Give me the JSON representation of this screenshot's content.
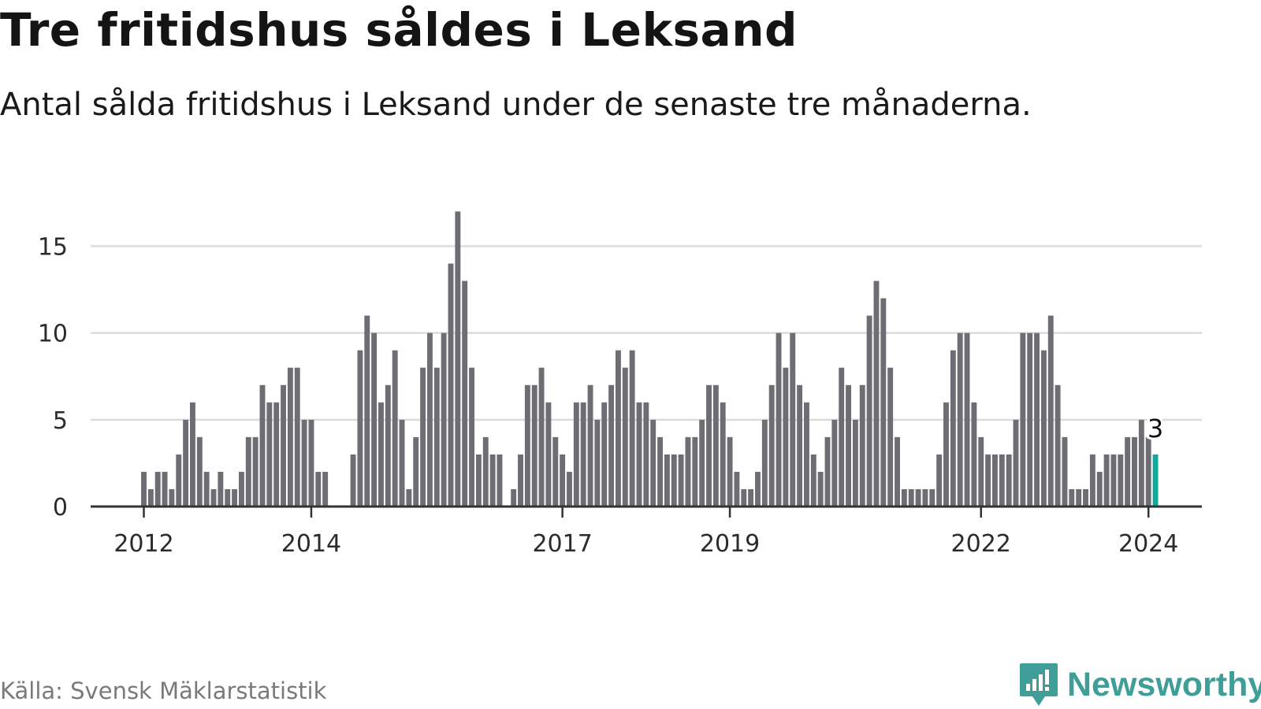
{
  "title": "Tre fritidshus såldes i Leksand",
  "subtitle": "Antal sålda fritidshus i Leksand under de senaste tre månaderna.",
  "source": "Källa: Svensk Mäklarstatistik",
  "brand": "Newsworthy",
  "colors": {
    "bar": "#6e6d73",
    "highlight": "#13a89e",
    "grid": "#dcdcdc",
    "axis": "#333333",
    "brand": "#3f9f98"
  },
  "chart_data": {
    "type": "bar",
    "title": "Tre fritidshus såldes i Leksand",
    "xlabel": "",
    "ylabel": "",
    "ylim": [
      0,
      17
    ],
    "yticks": [
      0,
      5,
      10,
      15
    ],
    "xticks": [
      "2012",
      "2014",
      "2017",
      "2019",
      "2022",
      "2024"
    ],
    "start": "2012-01",
    "unit": "month",
    "values": [
      2,
      1,
      2,
      2,
      1,
      3,
      5,
      6,
      4,
      2,
      1,
      2,
      1,
      1,
      2,
      4,
      4,
      7,
      6,
      6,
      7,
      8,
      8,
      5,
      5,
      2,
      2,
      0,
      0,
      0,
      3,
      9,
      11,
      10,
      6,
      7,
      9,
      5,
      1,
      4,
      8,
      10,
      8,
      10,
      14,
      17,
      13,
      8,
      3,
      4,
      3,
      3,
      0,
      1,
      3,
      7,
      7,
      8,
      6,
      4,
      3,
      2,
      6,
      6,
      7,
      5,
      6,
      7,
      9,
      8,
      9,
      6,
      6,
      5,
      4,
      3,
      3,
      3,
      4,
      4,
      5,
      7,
      7,
      6,
      4,
      2,
      1,
      1,
      2,
      5,
      7,
      10,
      8,
      10,
      7,
      6,
      3,
      2,
      4,
      5,
      8,
      7,
      5,
      7,
      11,
      13,
      12,
      8,
      4,
      1,
      1,
      1,
      1,
      1,
      3,
      6,
      9,
      10,
      10,
      6,
      4,
      3,
      3,
      3,
      3,
      5,
      10,
      10,
      10,
      9,
      11,
      7,
      4,
      1,
      1,
      1,
      3,
      2,
      3,
      3,
      3,
      4,
      4,
      5,
      4,
      3
    ],
    "last_value_label": "3"
  }
}
